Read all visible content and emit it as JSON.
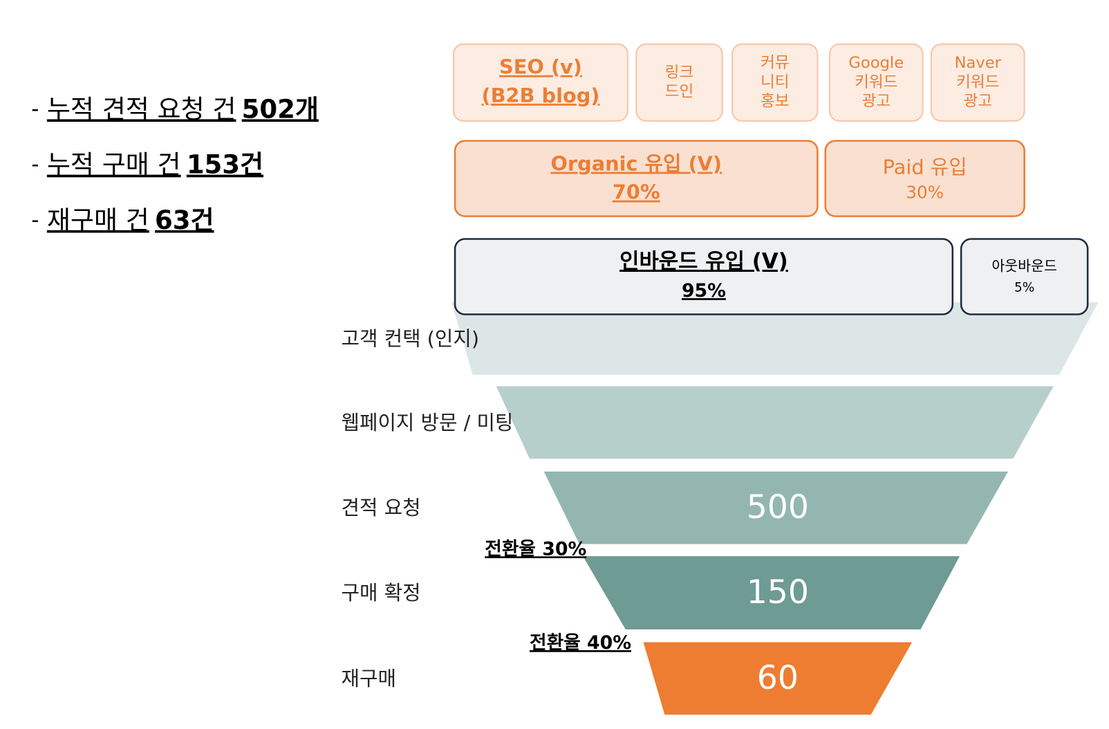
{
  "summary": [
    {
      "bullet": "-",
      "label": "누적 견적 요청 건",
      "count": "502개"
    },
    {
      "bullet": "-",
      "label": "누적 구매 건",
      "count": "153건"
    },
    {
      "bullet": "-",
      "label": "재구매 건",
      "count": "63건"
    }
  ],
  "channels": [
    {
      "lines": [
        "SEO (v)",
        "(B2B blog)"
      ]
    },
    {
      "lines": [
        "링크",
        "드인"
      ]
    },
    {
      "lines": [
        "커뮤",
        "니티",
        "홍보"
      ]
    },
    {
      "lines": [
        "Google",
        "키워드",
        "광고"
      ]
    },
    {
      "lines": [
        "Naver",
        "키워드",
        "광고"
      ]
    }
  ],
  "traffic": [
    {
      "label": "Organic 유입 (V)",
      "share": "70%"
    },
    {
      "label": "Paid 유입",
      "share": "30%"
    }
  ],
  "inflow": [
    {
      "label": "인바운드 유입 (V)",
      "share": "95%"
    },
    {
      "label": "아웃바운드",
      "share": "5%"
    }
  ],
  "funnel": [
    {
      "label": "고객 컨택 (인지)"
    },
    {
      "label": "웹페이지 방문 / 미팅"
    },
    {
      "label": "견적 요청",
      "value": "500"
    },
    {
      "label": "구매 확정",
      "value": "150"
    },
    {
      "label": "재구매",
      "value": "60"
    }
  ],
  "conversions": [
    "전환율 30%",
    "전환율 40%"
  ]
}
